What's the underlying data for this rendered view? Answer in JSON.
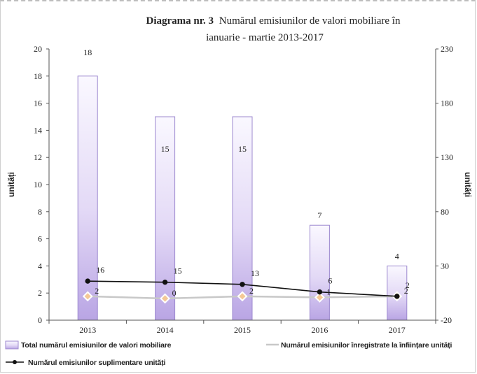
{
  "chart_data": {
    "type": "bar",
    "title_bold": "Diagrama nr. 3",
    "title_rest": "Numărul emisiunilor de valori mobiliare în",
    "title_line2": "ianuarie - martie  2013-2017",
    "categories": [
      "2013",
      "2014",
      "2015",
      "2016",
      "2017"
    ],
    "ylabel_left": "unități",
    "ylabel_right": "unități",
    "ylim_left": [
      0,
      20
    ],
    "yticks_left": [
      "0",
      "2",
      "4",
      "6",
      "8",
      "10",
      "12",
      "14",
      "16",
      "18",
      "20"
    ],
    "ylim_right": [
      -20,
      230
    ],
    "yticks_right": [
      "-20",
      "30",
      "80",
      "130",
      "180",
      "230"
    ],
    "series": [
      {
        "name": "Total numărul emisiunilor  de valori mobiliare",
        "kind": "bar",
        "axis": "left",
        "values": [
          18,
          15,
          15,
          7,
          4
        ],
        "labels": [
          "18",
          "15",
          "15",
          "7",
          "4"
        ],
        "color": "#c9b8ea"
      },
      {
        "name": "Numărul emisiunilor  suplimentare unități",
        "kind": "line",
        "axis": "right",
        "values": [
          16,
          15,
          13,
          6,
          2
        ],
        "labels": [
          "16",
          "15",
          "13",
          "6",
          "2"
        ],
        "color": "#111111"
      },
      {
        "name": "Numărul emisiunilor  înregistrate la înființare unități",
        "kind": "line",
        "axis": "right",
        "values": [
          2,
          0,
          2,
          1,
          2
        ],
        "labels": [
          "2",
          "0",
          "2",
          "1",
          "2"
        ],
        "color": "#c8c8c8",
        "marker_color": "#f4c896"
      }
    ],
    "grid": false,
    "legend": "bottom"
  }
}
